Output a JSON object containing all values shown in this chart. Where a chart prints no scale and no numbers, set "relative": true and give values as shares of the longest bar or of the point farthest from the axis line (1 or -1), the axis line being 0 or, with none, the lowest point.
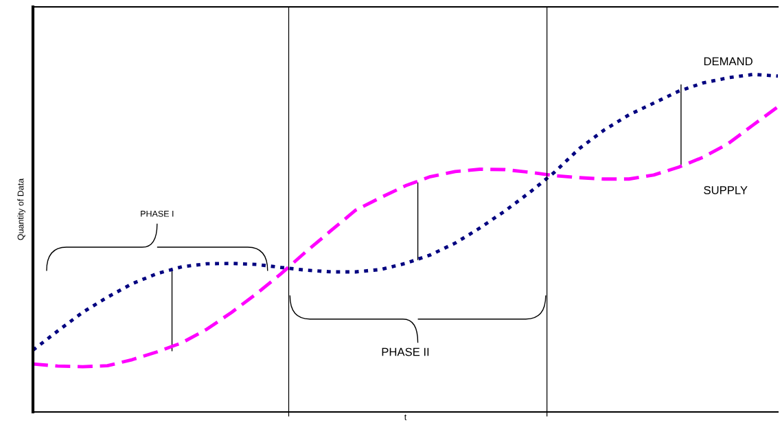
{
  "chart_data": {
    "type": "line",
    "relative": true,
    "xlabel": "t",
    "ylabel": "Quantity of Data",
    "categories": [
      null,
      null,
      null,
      null,
      null,
      null,
      null,
      null,
      null,
      null,
      null,
      null,
      null,
      null,
      null,
      null,
      null,
      null,
      null,
      null,
      null,
      null,
      null,
      null,
      null,
      null,
      null,
      null,
      null,
      null,
      null
    ],
    "series": [
      {
        "name": "DEMAND",
        "color": "#000080",
        "line_style": "dotted",
        "values": [
          0.183,
          0.24,
          0.295,
          0.34,
          0.38,
          0.41,
          0.43,
          0.439,
          0.44,
          0.437,
          0.428,
          0.42,
          0.415,
          0.415,
          0.422,
          0.44,
          0.465,
          0.5,
          0.545,
          0.595,
          0.65,
          0.71,
          0.78,
          0.835,
          0.88,
          0.915,
          0.95,
          0.975,
          0.99,
          1.0,
          0.995
        ]
      },
      {
        "name": "SUPPLY",
        "color": "#ff00ff",
        "line_style": "dashed",
        "values": [
          0.142,
          0.136,
          0.134,
          0.137,
          0.155,
          0.178,
          0.205,
          0.245,
          0.295,
          0.35,
          0.41,
          0.475,
          0.537,
          0.598,
          0.635,
          0.67,
          0.697,
          0.712,
          0.719,
          0.718,
          0.71,
          0.7,
          0.694,
          0.69,
          0.69,
          0.702,
          0.725,
          0.755,
          0.795,
          0.85,
          0.904
        ]
      }
    ],
    "annotations": [
      "PHASE I",
      "PHASE II"
    ],
    "marker": "none"
  }
}
